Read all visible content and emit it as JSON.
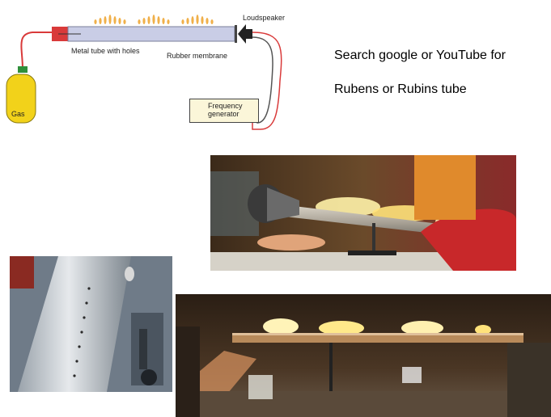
{
  "diagram": {
    "labels": {
      "loudspeaker": "Loudspeaker",
      "metal_tube": "Metal tube with holes",
      "rubber_membrane": "Rubber membrane",
      "gas": "Gas",
      "frequency_line1": "Frequency",
      "frequency_line2": "generator"
    },
    "colors": {
      "tube": "#c9cde6",
      "flame": "#f0b04a",
      "gas_tank": "#f2d21a",
      "hose": "#d93a3a",
      "speaker": "#222222"
    }
  },
  "text": {
    "line1": "Search google or YouTube for",
    "line2": "Rubens or Rubins tube"
  }
}
